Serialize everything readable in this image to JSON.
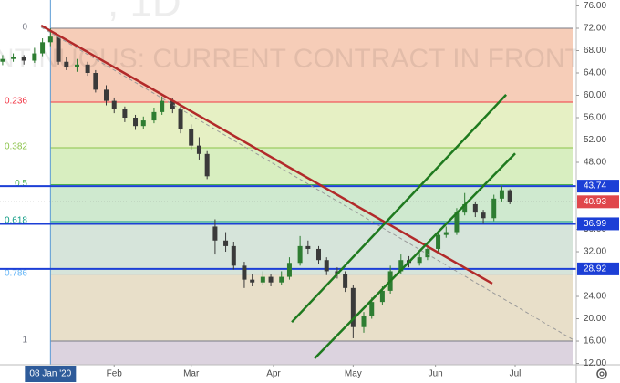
{
  "chart_data": {
    "type": "candlestick",
    "watermark": [
      ", 1D",
      "NTINUOUS: CURRENT CONTRACT IN FRONT)"
    ],
    "xlim": [
      -11,
      206
    ],
    "ylim": [
      11.76,
      77.06
    ],
    "xticks": [
      {
        "value": 32,
        "label": "Feb"
      },
      {
        "value": 61,
        "label": "Mar"
      },
      {
        "value": 92,
        "label": "Apr"
      },
      {
        "value": 122,
        "label": "May"
      },
      {
        "value": 153,
        "label": "Jun"
      },
      {
        "value": 183,
        "label": "Jul"
      }
    ],
    "yticks": [
      {
        "value": 76,
        "label": "76.00"
      },
      {
        "value": 72,
        "label": "72.00"
      },
      {
        "value": 68,
        "label": "68.00"
      },
      {
        "value": 64,
        "label": "64.00"
      },
      {
        "value": 60,
        "label": "60.00"
      },
      {
        "value": 56,
        "label": "56.00"
      },
      {
        "value": 52,
        "label": "52.00"
      },
      {
        "value": 48,
        "label": "48.00"
      },
      {
        "value": 36,
        "label": "36.00"
      },
      {
        "value": 32,
        "label": "32.00"
      },
      {
        "value": 24,
        "label": "24.00"
      },
      {
        "value": 20,
        "label": "20.00"
      },
      {
        "value": 16,
        "label": "16.00"
      },
      {
        "value": 12,
        "label": "12.00"
      }
    ],
    "fib": {
      "high": 72,
      "low": 16,
      "ratios": [
        0,
        0.236,
        0.382,
        0.5,
        0.618,
        0.786,
        1
      ],
      "line_colors": [
        "#787b86",
        "#f23645",
        "#8bc34a",
        "#4caf50",
        "#089981",
        "#64b5f6",
        "#787b86"
      ],
      "band_colors": [
        "#f6cdb8",
        "#e6f0c4",
        "#d8eec0",
        "#cfe9cf",
        "#d6e4da",
        "#e8dfc9"
      ],
      "below_color": "#dcd3df"
    },
    "levels": [
      {
        "value": 43.74,
        "color": "#1c3fd6"
      },
      {
        "value": 36.99,
        "color": "#1c3fd6"
      },
      {
        "value": 28.92,
        "color": "#1c3fd6"
      }
    ],
    "last_price": {
      "value": 40.93,
      "color": "#e0474c"
    },
    "crosshair": {
      "x": 8,
      "label": "08 Jan '20"
    },
    "trend_lines": [
      {
        "x": [
          4.5,
          174.4
        ],
        "y": [
          72.5,
          26.3
        ],
        "color": "#b22a2a",
        "dashed": false
      },
      {
        "x": [
          4.5,
          204.6
        ],
        "y": [
          72.2,
          16.3
        ],
        "color": "#9a9a9a",
        "dashed": true
      },
      {
        "x": [
          98.9,
          179.6
        ],
        "y": [
          19.4,
          60.1
        ],
        "color": "#1f7a1f",
        "dashed": false
      },
      {
        "x": [
          107.5,
          183
        ],
        "y": [
          12.9,
          49.6
        ],
        "color": "#1f7a1f",
        "dashed": false
      }
    ],
    "up_color": "#2e7d32",
    "down_color": "#3a3a3a",
    "x": [
      -10,
      -6,
      -2,
      2,
      5,
      8,
      11,
      14,
      18,
      22,
      25,
      29,
      32,
      36,
      40,
      43,
      47,
      50,
      54,
      57,
      61,
      64,
      67,
      70,
      74,
      77,
      81,
      84,
      88,
      91,
      95,
      98,
      102,
      105,
      109,
      112,
      116,
      119,
      122,
      126,
      129,
      133,
      136,
      140,
      143,
      147,
      150,
      154,
      157,
      161,
      164,
      168,
      171,
      175,
      178,
      181
    ],
    "ohlc": [
      [
        66,
        67.2,
        65.4,
        66.5
      ],
      [
        66.5,
        67.5,
        66,
        66.8
      ],
      [
        66.8,
        67.2,
        65.5,
        66.2
      ],
      [
        66.2,
        68.5,
        65.8,
        67.5
      ],
      [
        67.5,
        70.2,
        67,
        69.5
      ],
      [
        69.5,
        72,
        68.8,
        70.5
      ],
      [
        70.5,
        70.8,
        65.5,
        66
      ],
      [
        66,
        66.8,
        64.5,
        65
      ],
      [
        65,
        66.5,
        64.2,
        65.5
      ],
      [
        65.5,
        66,
        63.5,
        64
      ],
      [
        64,
        64.5,
        60.5,
        61
      ],
      [
        61,
        61.8,
        58.2,
        59
      ],
      [
        59,
        59.6,
        56.8,
        57.5
      ],
      [
        57.5,
        58,
        55.2,
        56
      ],
      [
        56,
        56.5,
        53.8,
        54.5
      ],
      [
        54.5,
        56.2,
        54,
        55.5
      ],
      [
        55.5,
        57.8,
        55,
        57
      ],
      [
        57,
        59.8,
        56.5,
        59
      ],
      [
        59,
        59.5,
        56.8,
        57.5
      ],
      [
        57.5,
        58,
        53.2,
        54
      ],
      [
        54,
        54.8,
        50.2,
        51
      ],
      [
        51,
        52.5,
        48.5,
        49.5
      ],
      [
        49.5,
        50,
        45,
        45.5
      ],
      [
        36.5,
        37.8,
        31.5,
        34
      ],
      [
        34,
        35.5,
        32,
        33
      ],
      [
        33,
        33.8,
        28.8,
        29.5
      ],
      [
        29.5,
        30.2,
        25.5,
        27
      ],
      [
        27,
        28,
        25.8,
        26.5
      ],
      [
        26.5,
        28.5,
        26,
        27.5
      ],
      [
        27.5,
        28,
        25.8,
        26.5
      ],
      [
        26.5,
        28.5,
        26,
        27.5
      ],
      [
        27.5,
        31,
        27,
        30
      ],
      [
        30,
        34.8,
        29.5,
        33
      ],
      [
        33,
        34,
        31.5,
        32.5
      ],
      [
        32.5,
        33,
        29.8,
        30.5
      ],
      [
        30.5,
        31,
        27.8,
        28.5
      ],
      [
        28.5,
        29.2,
        27.2,
        28
      ],
      [
        28,
        28.5,
        24.8,
        25.5
      ],
      [
        25.5,
        26,
        16.5,
        18.5
      ],
      [
        18.5,
        21.2,
        17.5,
        20.5
      ],
      [
        20.5,
        23.8,
        20,
        23
      ],
      [
        23,
        25.8,
        22.5,
        25
      ],
      [
        25,
        29.5,
        24.5,
        28.5
      ],
      [
        28.5,
        31.5,
        28,
        30.5
      ],
      [
        30.5,
        31.2,
        29.2,
        30
      ],
      [
        30,
        31.8,
        29.5,
        31
      ],
      [
        31,
        33.2,
        30.5,
        32.5
      ],
      [
        32.5,
        35.8,
        32,
        35
      ],
      [
        35,
        36.5,
        34.5,
        35.5
      ],
      [
        35.5,
        39.8,
        35,
        39
      ],
      [
        39,
        42.5,
        38.5,
        40.5
      ],
      [
        40.5,
        41,
        38.2,
        39
      ],
      [
        39,
        39.5,
        37,
        38
      ],
      [
        38,
        42.2,
        37.5,
        41.5
      ],
      [
        41.5,
        43.8,
        41,
        43
      ],
      [
        43,
        43.2,
        40.5,
        40.93
      ]
    ]
  }
}
